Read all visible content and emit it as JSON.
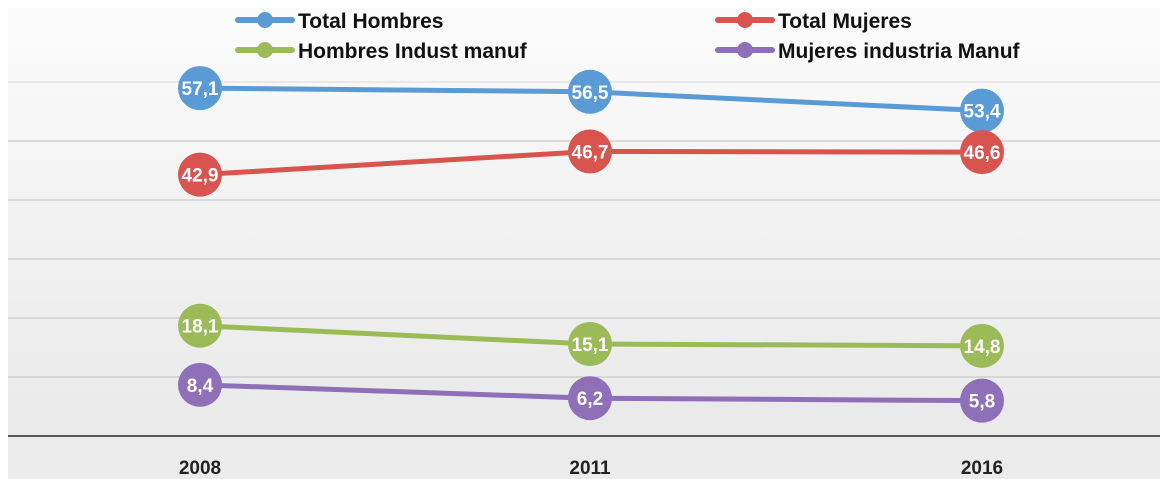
{
  "chart_data": {
    "type": "line",
    "categories": [
      "2008",
      "2011",
      "2016"
    ],
    "ylim": [
      0,
      65
    ],
    "grid": true,
    "legend_position": "top",
    "series": [
      {
        "name": "Total Hombres",
        "values": [
          "57,1",
          "56,5",
          "53,4"
        ],
        "numeric": [
          57.1,
          56.5,
          53.4
        ],
        "color": "#5b9bd5"
      },
      {
        "name": "Total Mujeres",
        "values": [
          "42,9",
          "46,7",
          "46,6"
        ],
        "numeric": [
          42.9,
          46.7,
          46.6
        ],
        "color": "#d9534f"
      },
      {
        "name": "Hombres Indust manuf",
        "values": [
          "18,1",
          "15,1",
          "14,8"
        ],
        "numeric": [
          18.1,
          15.1,
          14.8
        ],
        "color": "#9bbb59"
      },
      {
        "name": "Mujeres industria Manuf",
        "values": [
          "8,4",
          "6,2",
          "5,8"
        ],
        "numeric": [
          8.4,
          6.2,
          5.8
        ],
        "color": "#8e6fb8"
      }
    ]
  }
}
